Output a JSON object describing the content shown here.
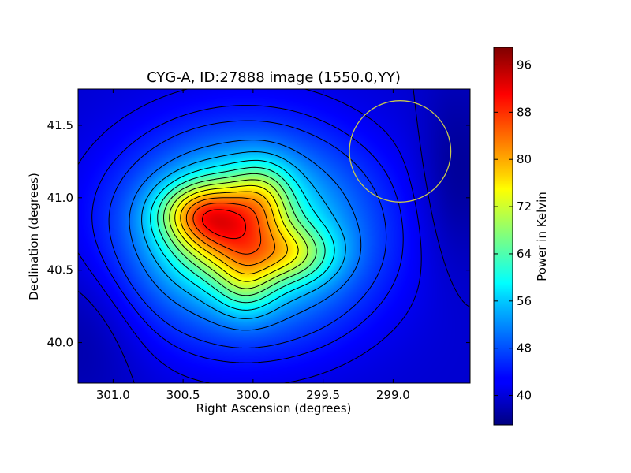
{
  "chart_data": {
    "type": "heatmap",
    "title": "CYG-A, ID:27888 image (1550.0,YY)",
    "xlabel": "Right Ascension (degrees)",
    "ylabel": "Declination (degrees)",
    "colorbar_label": "Power in Kelvin",
    "x_axis_inverted": true,
    "xlim": [
      301.25,
      298.45
    ],
    "ylim": [
      39.72,
      41.75
    ],
    "x_ticks": [
      {
        "value": 301.0,
        "label": "301.0"
      },
      {
        "value": 300.5,
        "label": "300.5"
      },
      {
        "value": 300.0,
        "label": "300.0"
      },
      {
        "value": 299.5,
        "label": "299.5"
      },
      {
        "value": 299.0,
        "label": "299.0"
      }
    ],
    "y_ticks": [
      {
        "value": 40.0,
        "label": "40.0"
      },
      {
        "value": 40.5,
        "label": "40.5"
      },
      {
        "value": 41.0,
        "label": "41.0"
      },
      {
        "value": 41.5,
        "label": "41.5"
      }
    ],
    "colorbar_range": [
      35,
      99
    ],
    "colorbar_ticks": [
      {
        "value": 40,
        "label": "40"
      },
      {
        "value": 48,
        "label": "48"
      },
      {
        "value": 56,
        "label": "56"
      },
      {
        "value": 64,
        "label": "64"
      },
      {
        "value": 72,
        "label": "72"
      },
      {
        "value": 80,
        "label": "80"
      },
      {
        "value": 88,
        "label": "88"
      },
      {
        "value": 96,
        "label": "96"
      }
    ],
    "colormap": "jet",
    "background_level": 40,
    "sources": [
      {
        "ra": 300.2,
        "dec": 40.8,
        "amp": 24,
        "sigma_ra": 0.26,
        "sigma_dec": 0.22
      },
      {
        "ra": 300.42,
        "dec": 40.9,
        "amp": 13,
        "sigma_ra": 0.2,
        "sigma_dec": 0.14
      },
      {
        "ra": 299.73,
        "dec": 40.61,
        "amp": 14,
        "sigma_ra": 0.22,
        "sigma_dec": 0.14
      },
      {
        "ra": 299.93,
        "dec": 41.02,
        "amp": 10,
        "sigma_ra": 0.15,
        "sigma_dec": 0.17
      },
      {
        "ra": 300.05,
        "dec": 40.42,
        "amp": 10,
        "sigma_ra": 0.15,
        "sigma_dec": 0.17
      },
      {
        "ra": 300.05,
        "dec": 40.75,
        "amp": 22,
        "sigma_ra": 0.62,
        "sigma_dec": 0.48
      }
    ],
    "dark_regions": [
      {
        "ra": 298.55,
        "dec": 41.15,
        "amp": -4,
        "sigma_ra": 0.18,
        "sigma_dec": 0.45
      },
      {
        "ra": 301.2,
        "dec": 40.1,
        "amp": -3,
        "sigma_ra": 0.3,
        "sigma_dec": 0.4
      }
    ],
    "contour_levels": [
      40,
      42,
      44,
      46,
      50,
      54,
      58,
      62,
      66,
      70,
      74,
      78,
      82,
      86,
      90
    ],
    "circle_annotation": {
      "ra": 298.95,
      "dec": 41.32,
      "radius_deg": 0.35,
      "color": "#c8c850"
    }
  }
}
